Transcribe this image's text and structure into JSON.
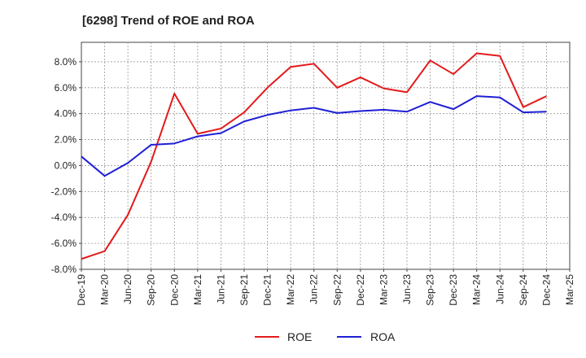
{
  "chart_data": {
    "type": "line",
    "title": "[6298]  Trend of ROE and ROA",
    "xlabel": "",
    "ylabel": "",
    "x": [
      "Dec-19",
      "Mar-20",
      "Jun-20",
      "Sep-20",
      "Dec-20",
      "Mar-21",
      "Jun-21",
      "Sep-21",
      "Dec-21",
      "Mar-22",
      "Jun-22",
      "Sep-22",
      "Dec-22",
      "Mar-23",
      "Jun-23",
      "Sep-23",
      "Dec-23",
      "Mar-24",
      "Jun-24",
      "Sep-24",
      "Dec-24",
      "Mar-25"
    ],
    "ylim": [
      -8.0,
      9.5
    ],
    "yticks": [
      -8.0,
      -6.0,
      -4.0,
      -2.0,
      0.0,
      2.0,
      4.0,
      6.0,
      8.0
    ],
    "ytick_labels": [
      "-8.0%",
      "-6.0%",
      "-4.0%",
      "-2.0%",
      "0.0%",
      "2.0%",
      "4.0%",
      "6.0%",
      "8.0%"
    ],
    "grid": true,
    "legend_position": "bottom-center",
    "series": [
      {
        "name": "ROE",
        "color": "#e31a1c",
        "values": [
          -7.2,
          -6.6,
          -3.8,
          0.3,
          5.55,
          2.45,
          2.85,
          4.1,
          6.0,
          7.6,
          7.85,
          6.0,
          6.8,
          5.95,
          5.65,
          8.1,
          7.05,
          8.65,
          8.45,
          4.5,
          5.35,
          null
        ]
      },
      {
        "name": "ROA",
        "color": "#1f1fd6",
        "values": [
          0.7,
          -0.8,
          0.2,
          1.6,
          1.7,
          2.25,
          2.5,
          3.4,
          3.9,
          4.25,
          4.45,
          4.05,
          4.2,
          4.3,
          4.15,
          4.9,
          4.35,
          5.35,
          5.25,
          4.1,
          4.15,
          null
        ]
      }
    ]
  }
}
